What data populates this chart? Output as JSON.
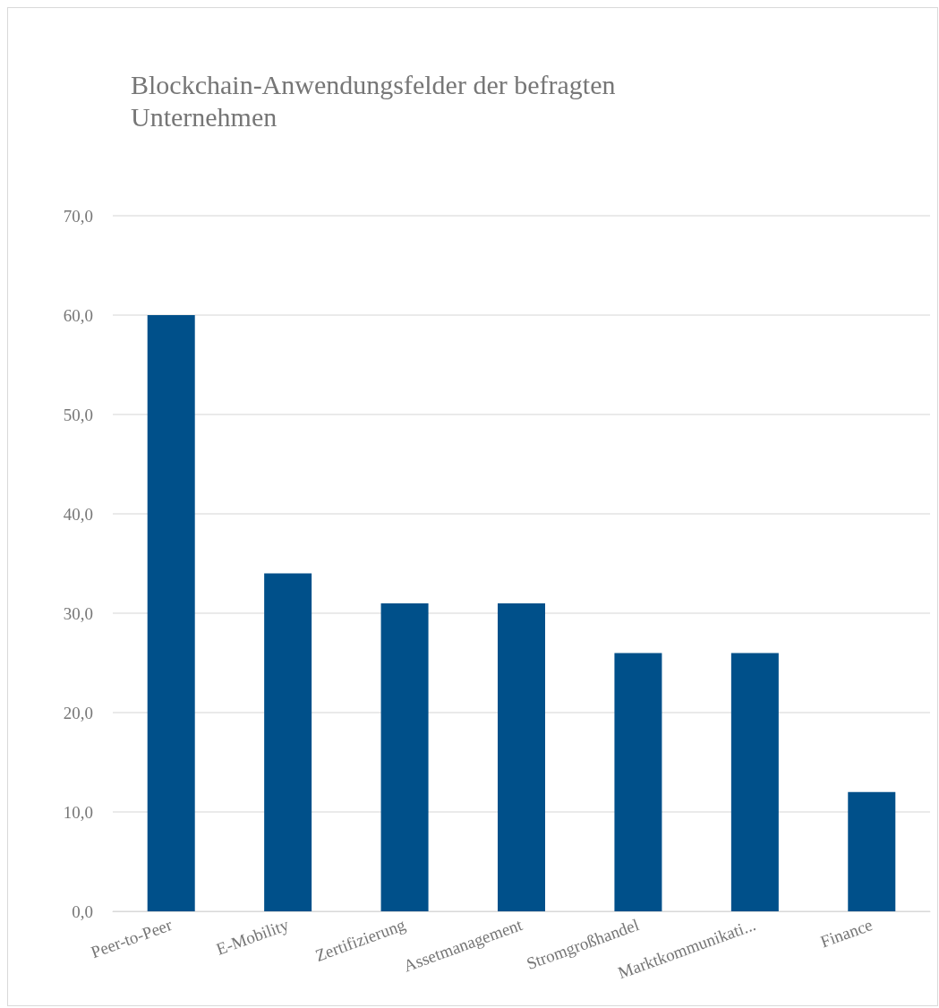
{
  "chart_data": {
    "type": "bar",
    "title": "Blockchain-Anwendungsfelder der befragten Unternehmen",
    "categories": [
      "Peer-to-Peer",
      "E-Mobility",
      "Zertifizierung",
      "Assetmanagement",
      "Stromgroßhandel",
      "Marktkommunikati...",
      "Finance"
    ],
    "values": [
      60,
      34,
      31,
      31,
      26,
      26,
      12
    ],
    "color": "#00508a",
    "ylim": [
      0,
      70
    ],
    "yticks": [
      {
        "value": 0,
        "label": "0,0"
      },
      {
        "value": 10,
        "label": "10,0"
      },
      {
        "value": 20,
        "label": "20,0"
      },
      {
        "value": 30,
        "label": "30,0"
      },
      {
        "value": 40,
        "label": "40,0"
      },
      {
        "value": 50,
        "label": "50,0"
      },
      {
        "value": 60,
        "label": "60,0"
      },
      {
        "value": 70,
        "label": "70,0"
      }
    ],
    "grid": "y"
  }
}
